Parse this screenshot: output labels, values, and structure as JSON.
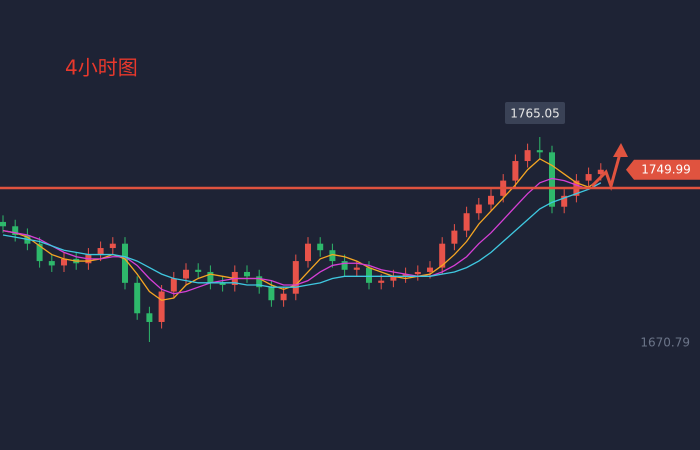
{
  "chart_data": {
    "type": "candlestick",
    "title": "4小时图",
    "open": [
      1726,
      1724,
      1720,
      1716,
      1708,
      1706,
      1709,
      1707,
      1711,
      1714,
      1716,
      1698,
      1684,
      1680,
      1694,
      1700,
      1704,
      1703,
      1698,
      1697,
      1703,
      1701,
      1696,
      1690,
      1693,
      1708,
      1716,
      1713,
      1708,
      1704,
      1705,
      1698,
      1699,
      1701,
      1702,
      1703,
      1705,
      1716,
      1722,
      1730,
      1734,
      1738,
      1745,
      1754,
      1759,
      1758,
      1733,
      1738,
      1745,
      1748
    ],
    "high": [
      1729,
      1727,
      1723,
      1719,
      1711,
      1712,
      1712,
      1714,
      1717,
      1719,
      1719,
      1701,
      1687,
      1697,
      1703,
      1707,
      1707,
      1706,
      1701,
      1706,
      1706,
      1704,
      1699,
      1696,
      1711,
      1719,
      1719,
      1716,
      1711,
      1708,
      1708,
      1702,
      1704,
      1705,
      1706,
      1708,
      1719,
      1725,
      1733,
      1737,
      1741,
      1748,
      1757,
      1762,
      1765.05,
      1761,
      1741,
      1748,
      1751,
      1753
    ],
    "low": [
      1721,
      1717,
      1713,
      1705,
      1703,
      1703,
      1704,
      1704,
      1708,
      1711,
      1695,
      1681,
      1670.79,
      1677,
      1691,
      1697,
      1700,
      1695,
      1694,
      1694,
      1698,
      1693,
      1687,
      1687,
      1690,
      1705,
      1710,
      1705,
      1701,
      1701,
      1695,
      1695,
      1696,
      1698,
      1699,
      1700,
      1702,
      1713,
      1719,
      1727,
      1731,
      1735,
      1742,
      1751,
      1755,
      1730,
      1730,
      1735,
      1742,
      1745
    ],
    "close": [
      1724,
      1720,
      1716,
      1708,
      1706,
      1709,
      1707,
      1711,
      1714,
      1716,
      1698,
      1684,
      1680,
      1694,
      1700,
      1704,
      1703,
      1698,
      1697,
      1703,
      1701,
      1696,
      1690,
      1693,
      1708,
      1716,
      1713,
      1708,
      1704,
      1705,
      1698,
      1699,
      1701,
      1702,
      1703,
      1705,
      1716,
      1722,
      1730,
      1734,
      1738,
      1745,
      1754,
      1759,
      1758,
      1733,
      1738,
      1745,
      1748,
      1749.99
    ],
    "up_color": "#e8534a",
    "down_color": "#2eb86b",
    "ma_lines": [
      {
        "color": "#f5a623",
        "values": [
          1722,
          1721,
          1719,
          1715,
          1711,
          1709,
          1708,
          1708,
          1709,
          1711,
          1709,
          1702,
          1694,
          1690,
          1691,
          1697,
          1700,
          1702,
          1701,
          1700,
          1700,
          1700,
          1697,
          1695,
          1697,
          1703,
          1709,
          1711,
          1710,
          1708,
          1705,
          1703,
          1701,
          1700,
          1701,
          1702,
          1706,
          1711,
          1717,
          1725,
          1731,
          1737,
          1743,
          1750,
          1755,
          1752,
          1748,
          1744,
          1742,
          1746
        ]
      },
      {
        "color": "#d63fd6",
        "values": [
          1722,
          1721,
          1720,
          1718,
          1715,
          1712,
          1710,
          1709,
          1709,
          1710,
          1710,
          1706,
          1700,
          1695,
          1693,
          1694,
          1696,
          1698,
          1699,
          1700,
          1700,
          1700,
          1699,
          1697,
          1697,
          1699,
          1703,
          1706,
          1707,
          1707,
          1706,
          1704,
          1703,
          1702,
          1701,
          1701,
          1703,
          1706,
          1710,
          1716,
          1721,
          1727,
          1733,
          1739,
          1744,
          1746,
          1745,
          1743,
          1741,
          1744
        ]
      },
      {
        "color": "#3fc8e0",
        "values": [
          1720,
          1719,
          1718,
          1717,
          1715,
          1713,
          1712,
          1711,
          1711,
          1711,
          1710,
          1708,
          1705,
          1702,
          1700,
          1699,
          1698,
          1698,
          1698,
          1698,
          1697,
          1697,
          1696,
          1696,
          1696,
          1697,
          1698,
          1700,
          1701,
          1701,
          1701,
          1701,
          1701,
          1701,
          1701,
          1701,
          1702,
          1703,
          1705,
          1708,
          1712,
          1717,
          1722,
          1727,
          1732,
          1735,
          1737,
          1739,
          1741,
          1744
        ]
      }
    ],
    "hline": 1741.6,
    "hline_color": "#e0533f",
    "ylim": [
      1621.14,
      1828.04
    ]
  }
}
